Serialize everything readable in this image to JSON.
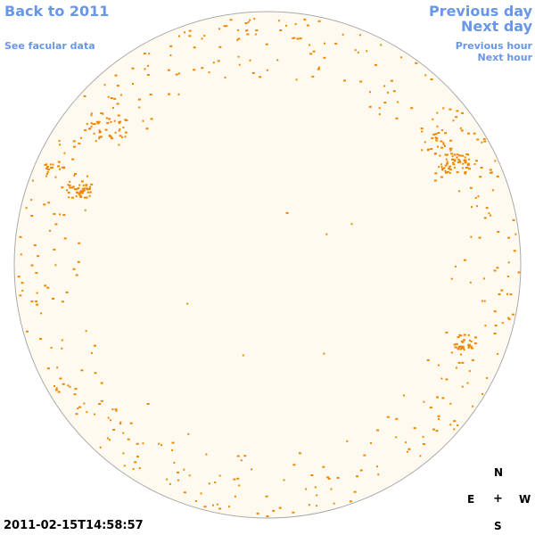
{
  "nav": {
    "back_label": "Back to 2011",
    "facular_label": "See facular data",
    "prev_day_label": "Previous day",
    "next_day_label": "Next day",
    "prev_hour_label": "Previous hour",
    "next_hour_label": "Next hour"
  },
  "compass": {
    "north": "N",
    "east": "E",
    "center": "+",
    "west": "W",
    "south": "S"
  },
  "timestamp": "2011-02-15T14:58:57",
  "colors": {
    "link": "#6a96e6",
    "disk_fill": "#fffaf0",
    "disk_outline": "#aaaaaa",
    "facula_dot": "#ee8800",
    "background": "#ffffff"
  }
}
